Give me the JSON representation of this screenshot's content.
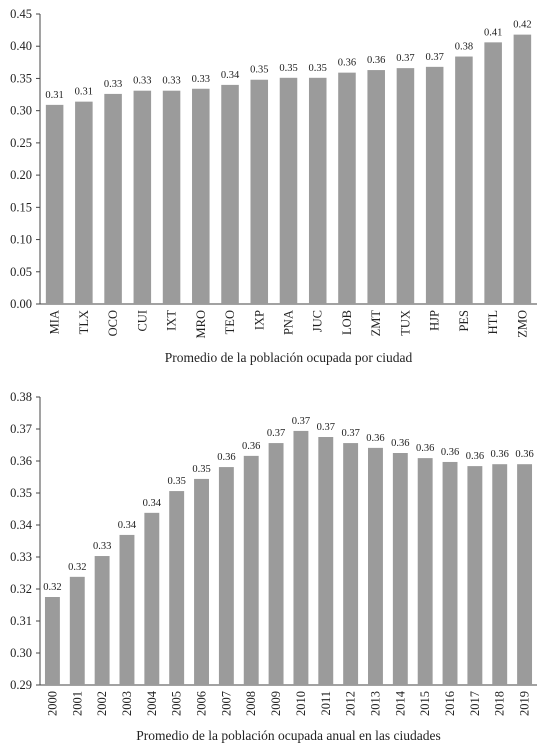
{
  "chart_data": [
    {
      "type": "bar",
      "title": "Promedio de la población ocupada por ciudad",
      "categories": [
        "MIA",
        "TLX",
        "OCO",
        "CUI",
        "IXT",
        "MRO",
        "TEO",
        "IXP",
        "PNA",
        "JUC",
        "LOB",
        "ZMT",
        "TUX",
        "HJP",
        "PES",
        "HTL",
        "ZMO"
      ],
      "values": [
        0.309,
        0.314,
        0.326,
        0.331,
        0.331,
        0.334,
        0.34,
        0.348,
        0.351,
        0.351,
        0.359,
        0.363,
        0.366,
        0.368,
        0.384,
        0.406,
        0.418
      ],
      "value_labels": [
        "0.31",
        "0.31",
        "0.33",
        "0.33",
        "0.33",
        "0.33",
        "0.34",
        "0.35",
        "0.35",
        "0.35",
        "0.36",
        "0.36",
        "0.37",
        "0.37",
        "0.38",
        "0.41",
        "0.42"
      ],
      "color": "#9b9b9b",
      "ylim": [
        0,
        0.45
      ],
      "yticks": [
        {
          "value": 0,
          "label": "0.00"
        },
        0.05,
        {
          "value": 0.1,
          "label": "0.10"
        },
        0.15,
        {
          "value": 0.2,
          "label": "0.20"
        },
        0.25,
        {
          "value": 0.3,
          "label": "0.30"
        },
        0.35,
        {
          "value": 0.4,
          "label": "0.40"
        },
        0.45
      ]
    },
    {
      "type": "bar",
      "title": "Promedio de la población ocupada anual en las ciudades",
      "categories": [
        "2000",
        "2001",
        "2002",
        "2003",
        "2004",
        "2005",
        "2006",
        "2007",
        "2008",
        "2009",
        "2010",
        "2011",
        "2012",
        "2013",
        "2014",
        "2015",
        "2016",
        "2017",
        "2018",
        "2019"
      ],
      "values": [
        0.3175,
        0.3238,
        0.3303,
        0.3369,
        0.3438,
        0.3506,
        0.3544,
        0.3581,
        0.3616,
        0.3656,
        0.3694,
        0.3675,
        0.3656,
        0.3641,
        0.3625,
        0.3609,
        0.3597,
        0.3584,
        0.359,
        0.359
      ],
      "value_labels": [
        "0.32",
        "0.32",
        "0.33",
        "0.34",
        "0.34",
        "0.35",
        "0.35",
        "0.36",
        "0.36",
        "0.37",
        "0.37",
        "0.37",
        "0.37",
        "0.36",
        "0.36",
        "0.36",
        "0.36",
        "0.36",
        "0.36",
        "0.36"
      ],
      "color": "#9b9b9b",
      "ylim": [
        0.29,
        0.38
      ],
      "yticks": [
        0.29,
        {
          "value": 0.3,
          "label": "0.30"
        },
        0.31,
        0.32,
        0.33,
        0.34,
        0.35,
        0.36,
        0.37,
        0.38
      ]
    }
  ]
}
